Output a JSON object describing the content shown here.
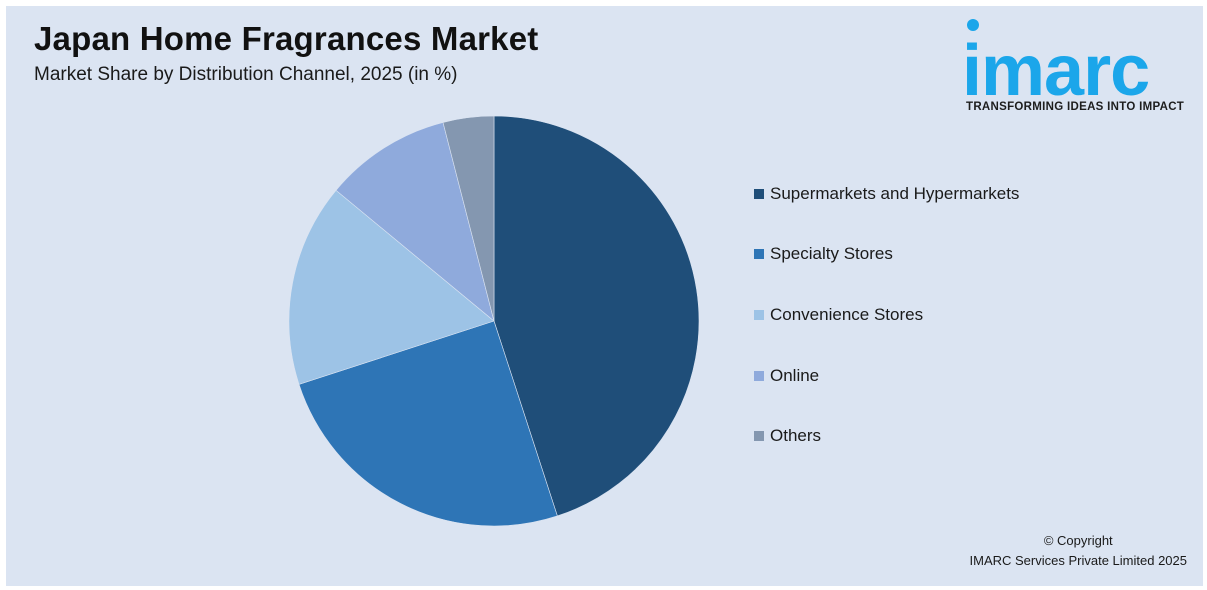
{
  "header": {
    "title": "Japan Home Fragrances Market",
    "subtitle": "Market Share by Distribution Channel, 2025 (in %)"
  },
  "logo": {
    "wordmark": "imarc",
    "tagline": "TRANSFORMING IDEAS INTO IMPACT",
    "color": "#1ba6ea"
  },
  "footer": {
    "copyright_line1": "© Copyright",
    "copyright_line2": "IMARC Services Private Limited 2025"
  },
  "legend": {
    "items": [
      {
        "label": "Supermarkets and Hypermarkets",
        "color": "#1f4e79"
      },
      {
        "label": "Specialty Stores",
        "color": "#2e75b6"
      },
      {
        "label": "Convenience Stores",
        "color": "#9dc3e6"
      },
      {
        "label": "Online",
        "color": "#8faadc"
      },
      {
        "label": "Others",
        "color": "#8497b0"
      }
    ]
  },
  "chart_data": {
    "type": "pie",
    "title": "Japan Home Fragrances Market",
    "subtitle": "Market Share by Distribution Channel, 2025 (in %)",
    "categories": [
      "Supermarkets and Hypermarkets",
      "Specialty Stores",
      "Convenience Stores",
      "Online",
      "Others"
    ],
    "values": [
      45,
      25,
      16,
      10,
      4
    ],
    "colors": [
      "#1f4e79",
      "#2e75b6",
      "#9dc3e6",
      "#8faadc",
      "#8497b0"
    ],
    "start_angle": "12 o'clock, clockwise",
    "legend_position": "right",
    "data_labels": false
  }
}
